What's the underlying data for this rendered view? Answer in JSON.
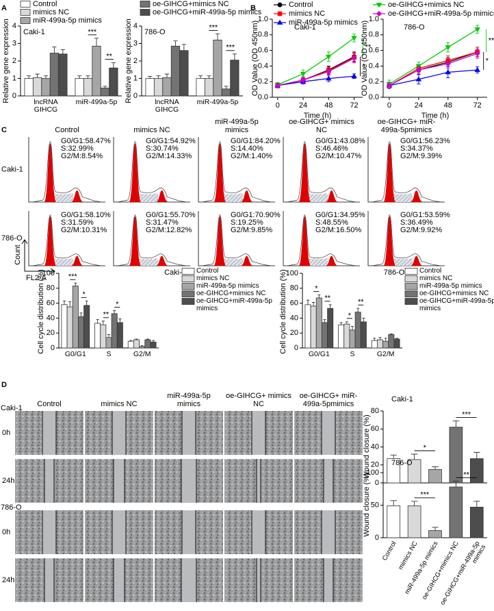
{
  "panel_labels": [
    "A",
    "B",
    "C",
    "D"
  ],
  "chart_data": [
    {
      "type": "bar",
      "title": "Caki-1",
      "ylabel": "Relative gene expression",
      "legend": true,
      "categories": [
        "lncRNA GIHCG",
        "miR-499a-5p"
      ],
      "ylim": [
        0,
        4
      ],
      "yticks": [
        0,
        1,
        2,
        3,
        4
      ],
      "series": [
        {
          "name": "Control",
          "color": "#ffffff",
          "values": [
            1.0,
            1.0
          ],
          "errors": [
            0.15,
            0.15
          ]
        },
        {
          "name": "mimics NC",
          "color": "#d9d9d9",
          "values": [
            1.05,
            1.0
          ],
          "errors": [
            0.2,
            0.15
          ]
        },
        {
          "name": "miR-499a-5p  mimics",
          "color": "#a6a6a6",
          "values": [
            1.0,
            2.85
          ],
          "errors": [
            0.15,
            0.45
          ]
        },
        {
          "name": "oe-GIHCG+mimics NC",
          "color": "#737373",
          "values": [
            2.45,
            0.45
          ],
          "errors": [
            0.35,
            0.1
          ]
        },
        {
          "name": "oe-GIHCG+miR-499a-5p mimics",
          "color": "#4d4d4d",
          "values": [
            2.4,
            1.6
          ],
          "errors": [
            0.25,
            0.3
          ]
        }
      ],
      "annotations": [
        {
          "text": "***",
          "category": 1,
          "from": 1,
          "to": 2
        },
        {
          "text": "**",
          "category": 1,
          "from": 3,
          "to": 4
        }
      ]
    },
    {
      "type": "bar",
      "title": "786-O",
      "ylabel": "Relative gene expression",
      "categories": [
        "lncRNA GIHCG",
        "miR-499a-5p"
      ],
      "ylim": [
        0,
        4
      ],
      "yticks": [
        0,
        1,
        2,
        3,
        4
      ],
      "series": [
        {
          "color": "#ffffff",
          "values": [
            1.0,
            1.0
          ],
          "errors": [
            0.12,
            0.15
          ]
        },
        {
          "color": "#d9d9d9",
          "values": [
            1.0,
            1.0
          ],
          "errors": [
            0.15,
            0.15
          ]
        },
        {
          "color": "#a6a6a6",
          "values": [
            1.05,
            3.2
          ],
          "errors": [
            0.2,
            0.35
          ]
        },
        {
          "color": "#737373",
          "values": [
            2.85,
            0.4
          ],
          "errors": [
            0.3,
            0.15
          ]
        },
        {
          "color": "#4d4d4d",
          "values": [
            2.6,
            2.05
          ],
          "errors": [
            0.35,
            0.35
          ]
        }
      ],
      "annotations": [
        {
          "text": "***",
          "category": 1,
          "from": 1,
          "to": 2
        },
        {
          "text": "***",
          "category": 1,
          "from": 3,
          "to": 4
        }
      ]
    },
    {
      "type": "line",
      "title": "Caki-1",
      "ylabel": "OD Value (OD 450nm)",
      "xlabel": "Time (h)",
      "legend": true,
      "x": [
        0,
        24,
        48,
        72
      ],
      "xlim": [
        -5,
        80
      ],
      "xticks": [
        0,
        24,
        48,
        72
      ],
      "ylim": [
        0,
        1
      ],
      "yticks": [
        {
          "value": 0,
          "label": "0.0"
        },
        0.2,
        0.4,
        0.6,
        0.8,
        {
          "value": 1,
          "label": "1.0"
        }
      ],
      "series": [
        {
          "name": "Control",
          "color": "#000000",
          "marker": "circle",
          "values": [
            0.15,
            0.22,
            0.35,
            0.52
          ],
          "errors": [
            0.03,
            0.04,
            0.05,
            0.06
          ]
        },
        {
          "name": "mimics NC",
          "color": "#ff0000",
          "marker": "square",
          "values": [
            0.15,
            0.22,
            0.34,
            0.51
          ],
          "errors": [
            0.03,
            0.04,
            0.05,
            0.06
          ]
        },
        {
          "name": "miR-499a-5p  mimics",
          "color": "#0000ff",
          "marker": "triangle",
          "values": [
            0.15,
            0.2,
            0.24,
            0.27
          ],
          "errors": [
            0.03,
            0.03,
            0.04,
            0.03
          ]
        },
        {
          "name": "oe-GIHCG+mimics NC",
          "color": "#00cc00",
          "marker": "triangle-down",
          "values": [
            0.16,
            0.3,
            0.52,
            0.76
          ],
          "errors": [
            0.03,
            0.05,
            0.06,
            0.05
          ]
        },
        {
          "name": "oe-GIHCG+miR-499a-5p mimics",
          "color": "#cc00cc",
          "marker": "diamond",
          "values": [
            0.15,
            0.22,
            0.33,
            0.5
          ],
          "errors": [
            0.03,
            0.04,
            0.05,
            0.06
          ]
        }
      ],
      "annotations": [
        {
          "text": "**",
          "from": 3,
          "to": 0
        },
        {
          "text": "*",
          "from": 0,
          "to": 2
        }
      ]
    },
    {
      "type": "line",
      "title": "786-O",
      "ylabel": "OD Value (OD 450nm)",
      "xlabel": "Time (h)",
      "x": [
        0,
        24,
        48,
        72
      ],
      "xlim": [
        -5,
        80
      ],
      "xticks": [
        0,
        24,
        48,
        72
      ],
      "ylim": [
        0,
        1
      ],
      "yticks": [
        {
          "value": 0,
          "label": "0.0"
        },
        0.2,
        0.4,
        0.6,
        0.8,
        {
          "value": 1,
          "label": "1.0"
        }
      ],
      "series": [
        {
          "color": "#000000",
          "marker": "circle",
          "values": [
            0.15,
            0.35,
            0.45,
            0.58
          ],
          "errors": [
            0.04,
            0.05,
            0.06,
            0.06
          ]
        },
        {
          "color": "#ff0000",
          "marker": "square",
          "values": [
            0.15,
            0.37,
            0.47,
            0.58
          ],
          "errors": [
            0.04,
            0.05,
            0.06,
            0.06
          ]
        },
        {
          "color": "#0000ff",
          "marker": "triangle",
          "values": [
            0.15,
            0.23,
            0.32,
            0.35
          ],
          "errors": [
            0.04,
            0.06,
            0.07,
            0.04
          ]
        },
        {
          "color": "#00cc00",
          "marker": "triangle-down",
          "values": [
            0.17,
            0.4,
            0.64,
            0.87
          ],
          "errors": [
            0.05,
            0.05,
            0.06,
            0.05
          ]
        },
        {
          "color": "#cc00cc",
          "marker": "diamond",
          "values": [
            0.15,
            0.35,
            0.43,
            0.56
          ],
          "errors": [
            0.04,
            0.05,
            0.06,
            0.06
          ]
        }
      ],
      "annotations": [
        {
          "text": "**",
          "from": 3,
          "to": 0
        },
        {
          "text": "*",
          "from": 0,
          "to": 2
        }
      ]
    },
    {
      "type": "bar",
      "title": "Caki-1",
      "ylabel": "Cell cycle distribution (%)",
      "legend": true,
      "categories": [
        "G0/G1",
        "S",
        "G2/M"
      ],
      "ylim": [
        0,
        100
      ],
      "yticks": [
        0,
        20,
        40,
        60,
        80,
        100
      ],
      "series": [
        {
          "name": "Control",
          "color": "#ffffff",
          "values": [
            58,
            33,
            9
          ],
          "errors": [
            5,
            5,
            1
          ]
        },
        {
          "name": "mimics NC",
          "color": "#d9d9d9",
          "values": [
            55,
            31,
            11
          ],
          "errors": [
            7,
            5,
            1
          ]
        },
        {
          "name": "miR-499a-5p  mimics",
          "color": "#a6a6a6",
          "values": [
            83,
            14,
            2
          ],
          "errors": [
            4,
            4,
            1
          ]
        },
        {
          "name": "oe-GIHCG+mimics NC",
          "color": "#737373",
          "values": [
            42,
            46,
            11
          ],
          "errors": [
            5,
            4,
            1
          ]
        },
        {
          "name": "oe-GIHCG+miR-499a-5p mimics",
          "color": "#4d4d4d",
          "values": [
            57,
            34,
            8
          ],
          "errors": [
            6,
            5,
            2
          ]
        }
      ],
      "annotations": [
        {
          "text": "***",
          "category": 0,
          "from": 1,
          "to": 2
        },
        {
          "text": "*",
          "category": 0,
          "from": 3,
          "to": 4
        },
        {
          "text": "**",
          "category": 1,
          "from": 1,
          "to": 2
        },
        {
          "text": "*",
          "category": 1,
          "from": 3,
          "to": 4
        }
      ]
    },
    {
      "type": "bar",
      "title": "786-O",
      "ylabel": "Cell cycle distribution (%)",
      "legend": true,
      "categories": [
        "G0/G1",
        "S",
        "G2/M"
      ],
      "ylim": [
        0,
        100
      ],
      "yticks": [
        0,
        20,
        40,
        60,
        80,
        100
      ],
      "series": [
        {
          "name": "Control",
          "color": "#ffffff",
          "values": [
            58,
            31,
            10
          ],
          "errors": [
            6,
            3,
            3
          ]
        },
        {
          "name": "mimics NC",
          "color": "#d9d9d9",
          "values": [
            56,
            32,
            11
          ],
          "errors": [
            5,
            3,
            3
          ]
        },
        {
          "name": "miR-499a-5p  mimics",
          "color": "#a6a6a6",
          "values": [
            67,
            24,
            9
          ],
          "errors": [
            4,
            5,
            4
          ]
        },
        {
          "name": "oe-GIHCG+mimics NC",
          "color": "#737373",
          "values": [
            34,
            48,
            18
          ],
          "errors": [
            4,
            5,
            1
          ]
        },
        {
          "name": "oe-GIHCG+miR-499a-5p mimics",
          "color": "#4d4d4d",
          "values": [
            53,
            35,
            12
          ],
          "errors": [
            5,
            5,
            1
          ]
        }
      ],
      "annotations": [
        {
          "text": "*",
          "category": 0,
          "from": 1,
          "to": 2
        },
        {
          "text": "**",
          "category": 0,
          "from": 3,
          "to": 4
        },
        {
          "text": "*",
          "category": 1,
          "from": 1,
          "to": 2
        },
        {
          "text": "**",
          "category": 1,
          "from": 3,
          "to": 4
        }
      ]
    },
    {
      "type": "bar",
      "title": "Caki-1",
      "ylabel": "Wound closure (%)",
      "categories": [
        null,
        null,
        null,
        null,
        null
      ],
      "ylim": [
        0,
        80
      ],
      "yticks": [
        0,
        20,
        40,
        60,
        80
      ],
      "colors": [
        "#ffffff",
        "#d9d9d9",
        "#a6a6a6",
        "#737373",
        "#4d4d4d"
      ],
      "values": [
        27,
        26,
        15,
        62,
        27
      ],
      "errors": [
        4,
        6,
        3,
        7,
        7
      ],
      "annotations": [
        {
          "text": "*",
          "from": 1,
          "to": 2
        },
        {
          "text": "***",
          "from": 3,
          "to": 4
        }
      ]
    },
    {
      "type": "bar",
      "title": "786-O",
      "ylabel": "Wound closure (%)",
      "categories": [
        "Control",
        "mimics NC",
        "miR-499a-5p  mimics",
        "oe-GIHCG+mimics NC",
        "oe-GIHCG+miR-499a-5p mimics"
      ],
      "ylim": [
        0,
        100
      ],
      "yticks": [
        0,
        50,
        100
      ],
      "colors": [
        "#ffffff",
        "#d9d9d9",
        "#a6a6a6",
        "#737373",
        "#4d4d4d"
      ],
      "values": [
        49,
        49,
        11,
        78,
        47
      ],
      "errors": [
        8,
        7,
        5,
        9,
        9
      ],
      "annotations": [
        {
          "text": "***",
          "from": 1,
          "to": 2
        },
        {
          "text": "**",
          "from": 3,
          "to": 4
        }
      ]
    }
  ],
  "flow_cytometry": {
    "columns": [
      "Control",
      "mimics NC",
      "miR-499a-5p  mimics",
      "oe-GIHCG+ mimics NC",
      "oe-GIHCG+ miR-499a-5pmimics"
    ],
    "rows": [
      {
        "label": "Caki-1",
        "panels": [
          [
            "G0/G1:58.47%",
            "S:32.99%",
            "G2/M:8.54%"
          ],
          [
            "G0/G1:54.92%",
            "S:30.74%",
            "G2/M:14.33%"
          ],
          [
            "G0/G1:84.20%",
            "S:14.40%",
            "G2/M:1.40%"
          ],
          [
            "G0/G1:43.08%",
            "S:46.46%",
            "G2/M:10.47%"
          ],
          [
            "G0/G1:56.23%",
            "S:34.37%",
            "G2/M:9.39%"
          ]
        ]
      },
      {
        "label": "786-O",
        "panels": [
          [
            "G0/G1:58.10%",
            "S:31.59%",
            "G2/M:10.31%"
          ],
          [
            "G0/G1:55.70%",
            "S:31.47%",
            "G2/M:12.82%"
          ],
          [
            "G0/G1:70.90%",
            "S:19.25%",
            "G2/M:9.85%"
          ],
          [
            "G0/G1:34.95%",
            "S:48.55%",
            "G2/M:16.50%"
          ],
          [
            "G0/G1:53.59%",
            "S:36.49%",
            "G2/M:9.92%"
          ]
        ]
      }
    ],
    "y_axis": "Count",
    "x_axis": "FL2-A"
  },
  "wound_healing": {
    "columns": [
      "Control",
      "mimics NC",
      "miR-499a-5p  mimics",
      "oe-GIHCG+ mimics NC",
      "oe-GIHCG+ miR-499a-5pmimics"
    ],
    "rows": [
      {
        "group": "Caki-1",
        "time": "0h"
      },
      {
        "time": "24h"
      },
      {
        "group": "786-O",
        "time": "0h"
      },
      {
        "time": "24h"
      }
    ]
  }
}
